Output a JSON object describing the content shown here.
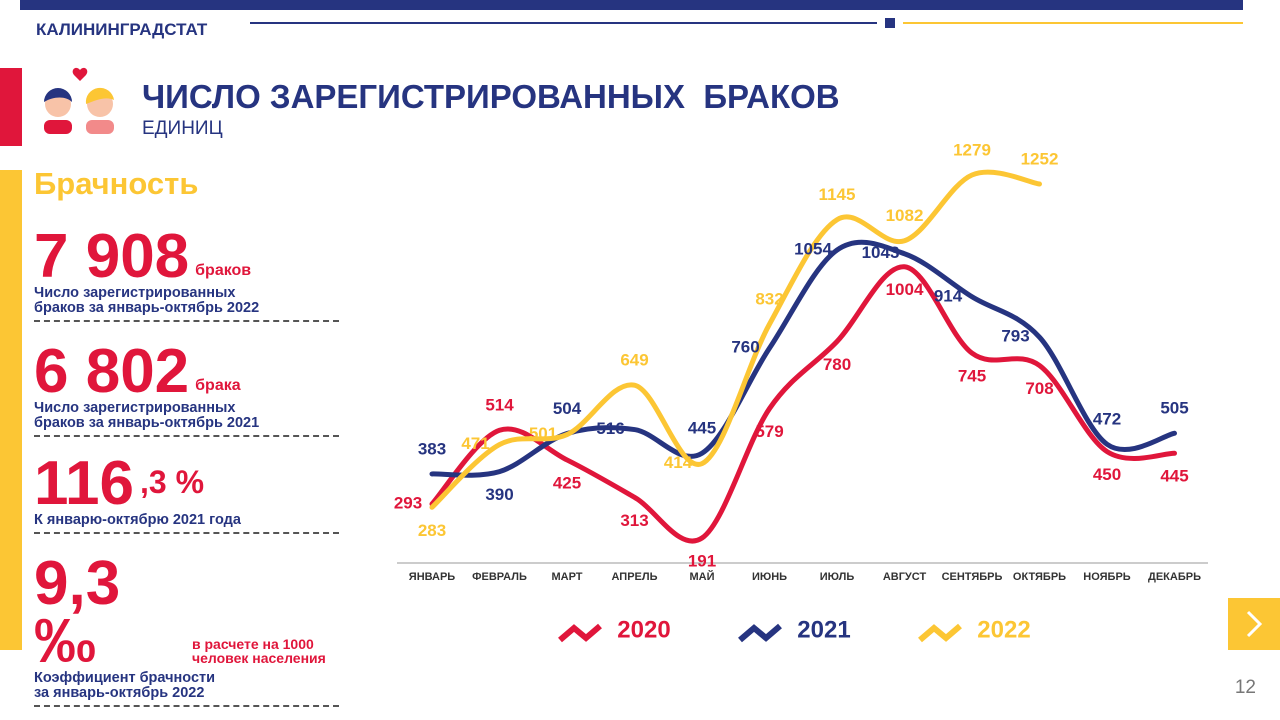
{
  "header": {
    "org": "КАЛИНИНГРАДСТАТ",
    "title": "ЧИСЛО ЗАРЕГИСТРИРОВАННЫХ  БРАКОВ",
    "subtitle": "ЕДИНИЦ",
    "page": "12"
  },
  "panel": {
    "heading": "Брачность",
    "stats": [
      {
        "value": "7 908",
        "unit": "браков",
        "desc": [
          "Число зарегистрированных",
          "браков за январь-октябрь 2022"
        ]
      },
      {
        "value": "6 802",
        "unit": "брака",
        "desc": [
          "Число зарегистрированных",
          "браков за январь-октябрь 2021"
        ]
      },
      {
        "value": "116",
        "unit": ",3 %",
        "desc": [
          "К январю-октябрю 2021 года"
        ]
      },
      {
        "value": "9,3 ‰",
        "unit": "в расчете на 1000 человек населения",
        "desc": [
          "Коэффициент брачности",
          "за январь-октябрь 2022"
        ]
      }
    ]
  },
  "chart_data": {
    "type": "line",
    "categories": [
      "ЯНВАРЬ",
      "ФЕВРАЛЬ",
      "МАРТ",
      "АПРЕЛЬ",
      "МАЙ",
      "ИЮНЬ",
      "ИЮЛЬ",
      "АВГУСТ",
      "СЕНТЯБРЬ",
      "ОКТЯБРЬ",
      "НОЯБРЬ",
      "ДЕКАБРЬ"
    ],
    "series": [
      {
        "name": "2020",
        "color": "#e0163b",
        "values": [
          293,
          514,
          425,
          313,
          191,
          579,
          780,
          1004,
          745,
          708,
          450,
          445
        ]
      },
      {
        "name": "2021",
        "color": "#263480",
        "values": [
          383,
          390,
          504,
          516,
          445,
          760,
          1054,
          1043,
          914,
          793,
          472,
          505
        ]
      },
      {
        "name": "2022",
        "color": "#fcc634",
        "values": [
          283,
          471,
          501,
          649,
          414,
          832,
          1145,
          1082,
          1279,
          1252,
          null,
          null
        ]
      }
    ]
  }
}
